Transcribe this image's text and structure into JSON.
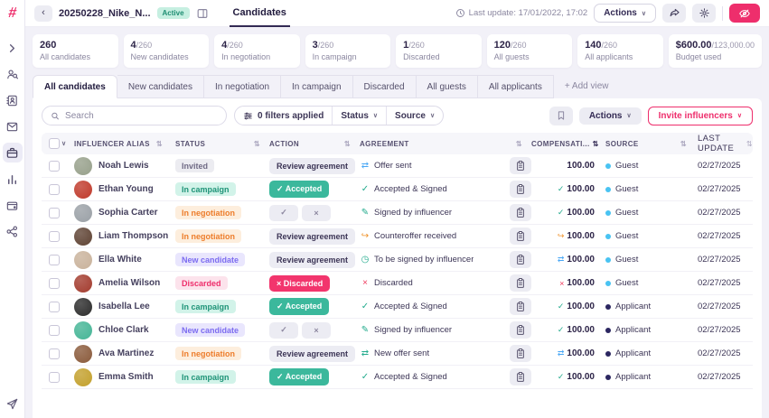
{
  "colors": {
    "accent_pink": "#ee2e6c",
    "teal_icon": "#23ab8d",
    "orange_icon": "#f0932b",
    "red_icon": "#ef3a5d",
    "blue_icon": "#49a7f5",
    "guest_dot": "#49c3f2",
    "applicant_dot": "#2b2660"
  },
  "icons": {
    "check": "✓",
    "x": "×",
    "send": "⇄",
    "counteroffer": "↪",
    "clock": "◷",
    "pen": "✎",
    "sort": "⇅",
    "chevron_down": "∨",
    "chevron_left": "‹",
    "logo_glyph": "#",
    "add": "+"
  },
  "sidebar": {
    "items": [
      "expand",
      "audience-search",
      "contacts",
      "inbox",
      "campaigns",
      "reports",
      "payments",
      "network"
    ],
    "active_item": "campaigns",
    "bottom_item": "send"
  },
  "header": {
    "title": "20250228_Nike_N...",
    "status_badge": "Active",
    "page_tab": "Candidates",
    "last_update": "Last update: 17/01/2022, 17:02",
    "actions_label": "Actions"
  },
  "stats": [
    {
      "value": "260",
      "denom": "",
      "label": "All candidates"
    },
    {
      "value": "4",
      "denom": "/260",
      "label": "New candidates"
    },
    {
      "value": "4",
      "denom": "/260",
      "label": "In negotiation"
    },
    {
      "value": "3",
      "denom": "/260",
      "label": "In campaign"
    },
    {
      "value": "1",
      "denom": "/260",
      "label": "Discarded"
    },
    {
      "value": "120",
      "denom": "/260",
      "label": "All guests"
    },
    {
      "value": "140",
      "denom": "/260",
      "label": "All applicants"
    },
    {
      "value": "$600.00",
      "denom": "/123,000.00",
      "label": "Budget used"
    }
  ],
  "tabs": {
    "items": [
      "All candidates",
      "New candidates",
      "In negotiation",
      "In campaign",
      "Discarded",
      "All guests",
      "All applicants"
    ],
    "active": "All candidates",
    "add_label": "+ Add view"
  },
  "toolbar": {
    "search_placeholder": "Search",
    "filters_label": "0 filters applied",
    "status_label": "Status",
    "source_label": "Source",
    "actions_label": "Actions",
    "invite_label": "Invite influencers"
  },
  "table": {
    "columns": [
      "INFLUENCER ALIAS",
      "STATUS",
      "ACTION",
      "AGREEMENT",
      "COMPENSATI...",
      "SOURCE",
      "LAST UPDATE"
    ],
    "sorted_column": "COMPENSATI...",
    "rows": [
      {
        "name": "Noah Lewis",
        "avatar_color": "#97a08b",
        "status": {
          "label": "Invited",
          "type": "gray"
        },
        "action": {
          "type": "review",
          "label": "Review agreement"
        },
        "agreement": {
          "icon": "send",
          "color": "#49a7f5",
          "label": "Offer sent"
        },
        "compensation": {
          "icon": "",
          "color": "",
          "value": "100.00"
        },
        "source": {
          "label": "Guest",
          "type": "guest"
        },
        "last_update": "02/27/2025"
      },
      {
        "name": "Ethan Young",
        "avatar_color": "#c03a2b",
        "status": {
          "label": "In campaign",
          "type": "teal"
        },
        "action": {
          "type": "accepted",
          "icon": "check",
          "label": "Accepted"
        },
        "agreement": {
          "icon": "check",
          "color": "#23ab8d",
          "label": "Accepted & Signed"
        },
        "compensation": {
          "icon": "check",
          "color": "#23ab8d",
          "value": "100.00"
        },
        "source": {
          "label": "Guest",
          "type": "guest"
        },
        "last_update": "02/27/2025"
      },
      {
        "name": "Sophia Carter",
        "avatar_color": "#9aa0a6",
        "status": {
          "label": "In negotiation",
          "type": "orange"
        },
        "action": {
          "type": "choice"
        },
        "agreement": {
          "icon": "pen",
          "color": "#23ab8d",
          "label": "Signed by influencer"
        },
        "compensation": {
          "icon": "check",
          "color": "#23ab8d",
          "value": "100.00"
        },
        "source": {
          "label": "Guest",
          "type": "guest"
        },
        "last_update": "02/27/2025"
      },
      {
        "name": "Liam Thompson",
        "avatar_color": "#5f4334",
        "status": {
          "label": "In negotiation",
          "type": "orange"
        },
        "action": {
          "type": "review",
          "label": "Review agreement"
        },
        "agreement": {
          "icon": "counteroffer",
          "color": "#f0932b",
          "label": "Counteroffer received"
        },
        "compensation": {
          "icon": "counteroffer",
          "color": "#f0932b",
          "value": "100.00"
        },
        "source": {
          "label": "Guest",
          "type": "guest"
        },
        "last_update": "02/27/2025"
      },
      {
        "name": "Ella White",
        "avatar_color": "#c9b29b",
        "status": {
          "label": "New candidate",
          "type": "lavender"
        },
        "action": {
          "type": "review",
          "label": "Review agreement"
        },
        "agreement": {
          "icon": "clock",
          "color": "#23ab8d",
          "label": "To be signed by influencer"
        },
        "compensation": {
          "icon": "send",
          "color": "#49a7f5",
          "value": "100.00"
        },
        "source": {
          "label": "Guest",
          "type": "guest"
        },
        "last_update": "02/27/2025"
      },
      {
        "name": "Amelia Wilson",
        "avatar_color": "#a33b2e",
        "status": {
          "label": "Discarded",
          "type": "pink"
        },
        "action": {
          "type": "discarded",
          "icon": "x",
          "label": "Discarded"
        },
        "agreement": {
          "icon": "x",
          "color": "#ef3a5d",
          "label": "Discarded"
        },
        "compensation": {
          "icon": "x",
          "color": "#ef3a5d",
          "value": "100.00"
        },
        "source": {
          "label": "Guest",
          "type": "guest"
        },
        "last_update": "02/27/2025"
      },
      {
        "name": "Isabella Lee",
        "avatar_color": "#2c2c2c",
        "status": {
          "label": "In campaign",
          "type": "teal"
        },
        "action": {
          "type": "accepted",
          "icon": "check",
          "label": "Accepted"
        },
        "agreement": {
          "icon": "check",
          "color": "#23ab8d",
          "label": "Accepted & Signed"
        },
        "compensation": {
          "icon": "check",
          "color": "#23ab8d",
          "value": "100.00"
        },
        "source": {
          "label": "Applicant",
          "type": "applicant"
        },
        "last_update": "02/27/2025"
      },
      {
        "name": "Chloe Clark",
        "avatar_color": "#45b596",
        "status": {
          "label": "New candidate",
          "type": "lavender"
        },
        "action": {
          "type": "choice"
        },
        "agreement": {
          "icon": "pen",
          "color": "#23ab8d",
          "label": "Signed by influencer"
        },
        "compensation": {
          "icon": "check",
          "color": "#23ab8d",
          "value": "100.00"
        },
        "source": {
          "label": "Applicant",
          "type": "applicant"
        },
        "last_update": "02/27/2025"
      },
      {
        "name": "Ava Martinez",
        "avatar_color": "#8a5a3b",
        "status": {
          "label": "In negotiation",
          "type": "orange"
        },
        "action": {
          "type": "review",
          "label": "Review agreement"
        },
        "agreement": {
          "icon": "send",
          "color": "#23ab8d",
          "label": "New offer sent"
        },
        "compensation": {
          "icon": "send",
          "color": "#49a7f5",
          "value": "100.00"
        },
        "source": {
          "label": "Applicant",
          "type": "applicant"
        },
        "last_update": "02/27/2025"
      },
      {
        "name": "Emma Smith",
        "avatar_color": "#c3a02c",
        "status": {
          "label": "In campaign",
          "type": "teal"
        },
        "action": {
          "type": "accepted",
          "icon": "check",
          "label": "Accepted"
        },
        "agreement": {
          "icon": "check",
          "color": "#23ab8d",
          "label": "Accepted & Signed"
        },
        "compensation": {
          "icon": "check",
          "color": "#23ab8d",
          "value": "100.00"
        },
        "source": {
          "label": "Applicant",
          "type": "applicant"
        },
        "last_update": "02/27/2025"
      }
    ]
  }
}
